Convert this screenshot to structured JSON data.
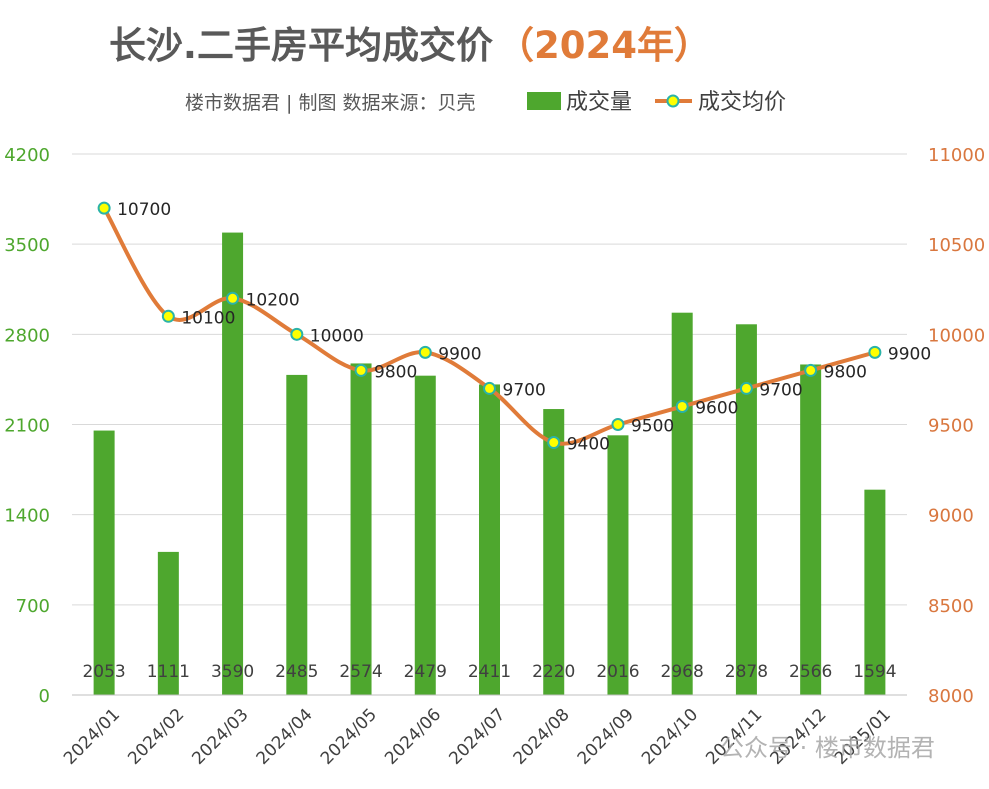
{
  "chart_data": {
    "type": "bar",
    "title": "长沙.二手房平均成交价",
    "title_year": "（2024年）",
    "subtitle": "楼市数据君 | 制图   数据来源：贝壳",
    "categories": [
      "2024/01",
      "2024/02",
      "2024/03",
      "2024/04",
      "2024/05",
      "2024/06",
      "2024/07",
      "2024/08",
      "2024/09",
      "2024/10",
      "2024/11",
      "2024/12",
      "2025/01"
    ],
    "series": [
      {
        "name": "成交量",
        "type": "bar",
        "axis": "left",
        "color": "#4ea72e",
        "values": [
          2053,
          1111,
          3590,
          2485,
          2574,
          2479,
          2411,
          2220,
          2016,
          2968,
          2878,
          2566,
          1594
        ]
      },
      {
        "name": "成交均价",
        "type": "line",
        "axis": "right",
        "color": "#e07b39",
        "marker_fill": "#ffff00",
        "marker_stroke": "#2ab3a8",
        "values": [
          10700,
          10100,
          10200,
          10000,
          9800,
          9900,
          9700,
          9400,
          9500,
          9600,
          9700,
          9800,
          9900
        ]
      }
    ],
    "y_left": {
      "min": 0,
      "max": 4200,
      "ticks": [
        0,
        700,
        1400,
        2100,
        2800,
        3500,
        4200
      ],
      "color": "#4ea72e"
    },
    "y_right": {
      "min": 8000,
      "max": 11000,
      "ticks": [
        8000,
        8500,
        9000,
        9500,
        10000,
        10500,
        11000
      ],
      "color": "#d9773f"
    },
    "grid": true,
    "legend_position": "top"
  },
  "watermark": "公众号 · 楼市数据君"
}
